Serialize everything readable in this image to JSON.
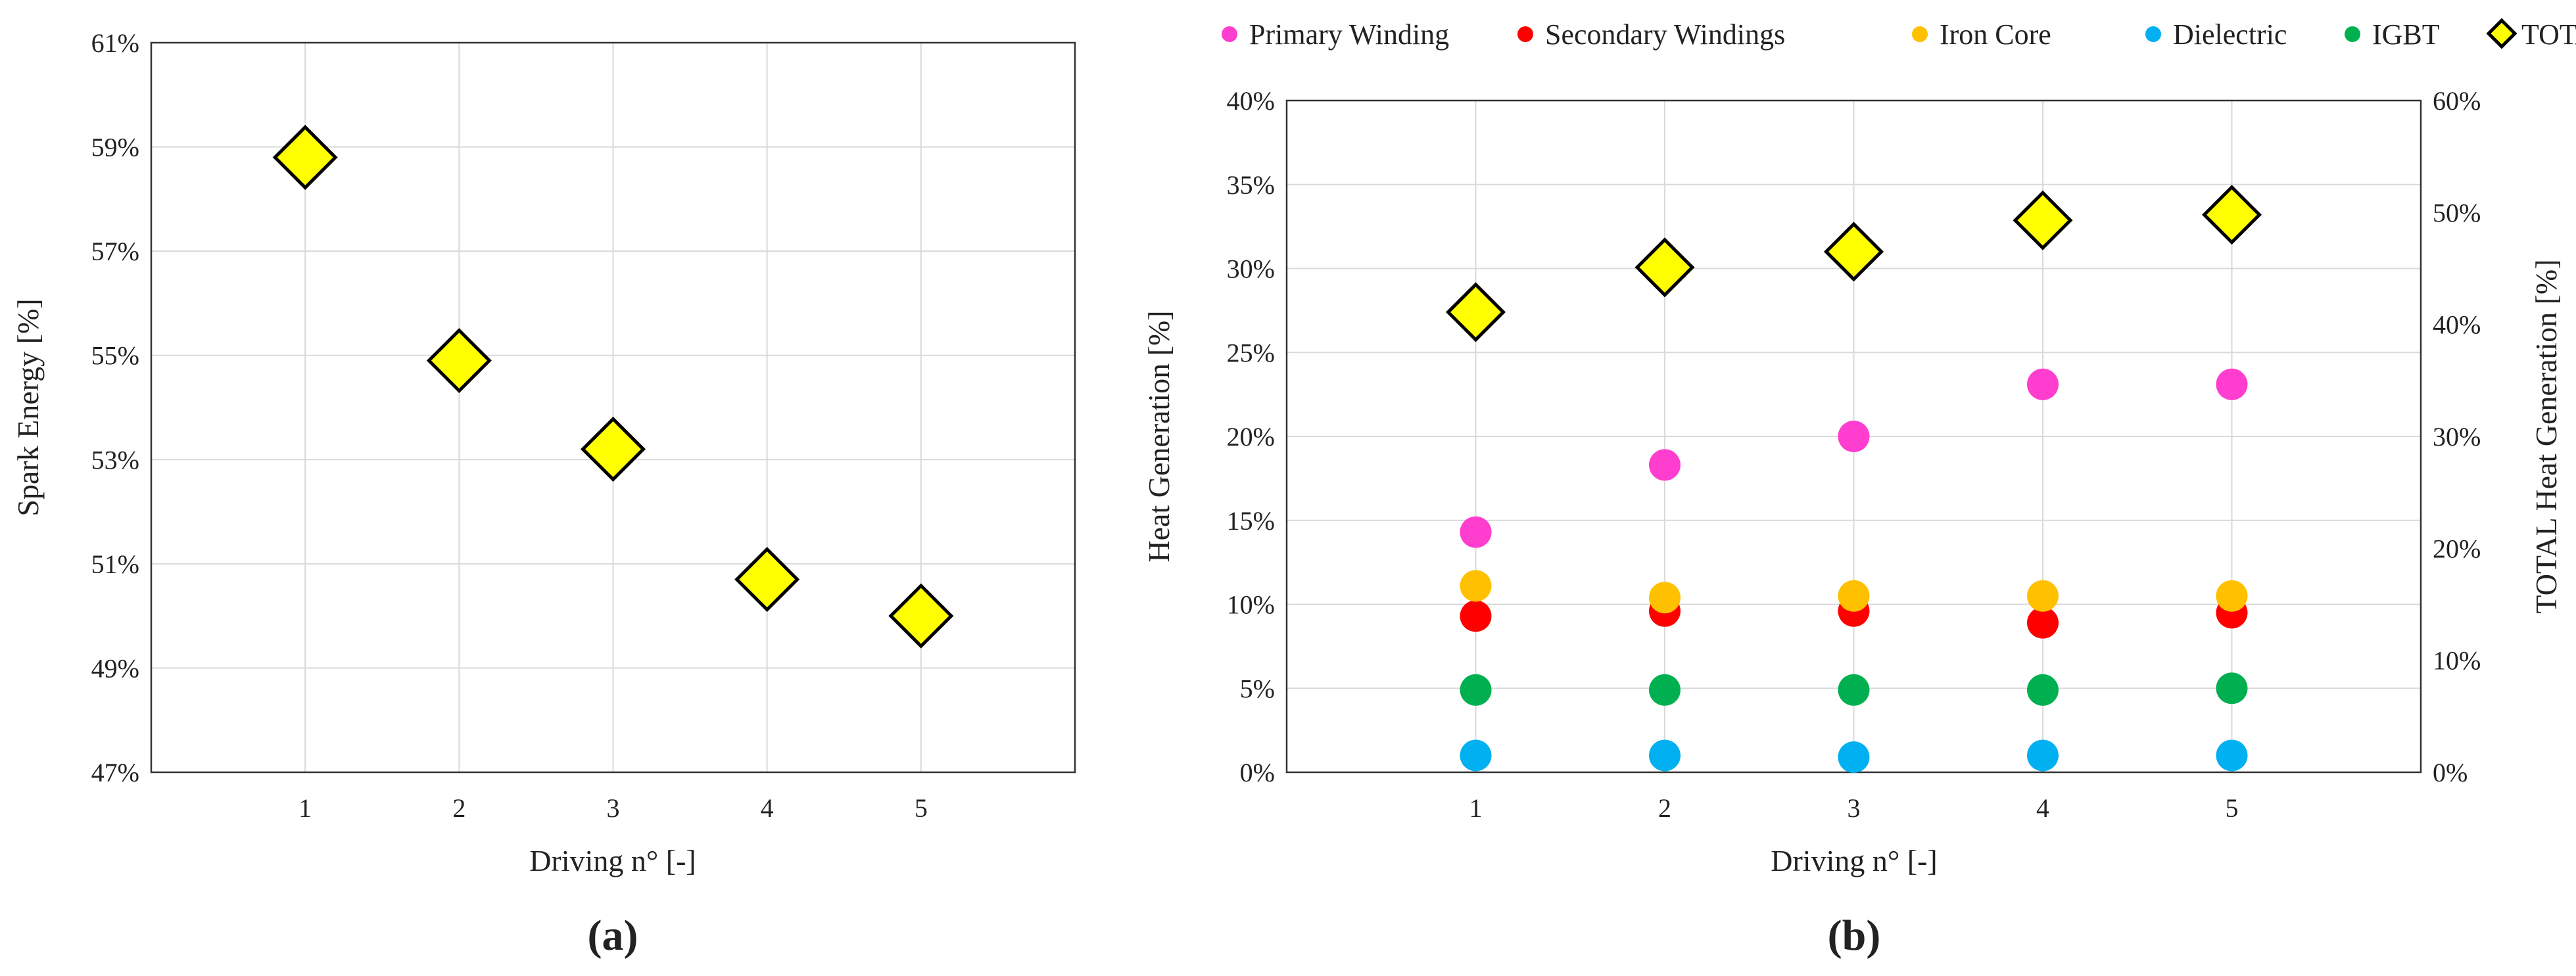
{
  "chart_data": [
    {
      "type": "scatter",
      "panel_label": "(a)",
      "x": [
        1,
        2,
        3,
        4,
        5
      ],
      "xlim": [
        0,
        6
      ],
      "xticks": [
        "1",
        "2",
        "3",
        "4",
        "5"
      ],
      "xlabel": "Driving n°  [-]",
      "ylabel": "Spark Energy [%]",
      "ylim": [
        47,
        61
      ],
      "yticks": [
        "47%",
        "49%",
        "51%",
        "53%",
        "55%",
        "57%",
        "59%",
        "61%"
      ],
      "grid": true,
      "series": [
        {
          "values": [
            58.8,
            54.9,
            53.2,
            50.7,
            50.0
          ],
          "color": "#ffff00",
          "marker": "diamond"
        }
      ]
    },
    {
      "type": "scatter",
      "panel_label": "(b)",
      "x": [
        1,
        2,
        3,
        4,
        5
      ],
      "xlim": [
        0,
        6
      ],
      "xticks": [
        "1",
        "2",
        "3",
        "4",
        "5"
      ],
      "xlabel": "Driving n°  [-]",
      "ylabel": "Heat Generation  [%]",
      "ylim": [
        0,
        40
      ],
      "yticks": [
        "0%",
        "5%",
        "10%",
        "15%",
        "20%",
        "25%",
        "30%",
        "35%",
        "40%"
      ],
      "y2label": "TOTAL Heat Generation  [%]",
      "y2lim": [
        0,
        60
      ],
      "y2ticks": [
        "0%",
        "10%",
        "20%",
        "30%",
        "40%",
        "50%",
        "60%"
      ],
      "legend_position": "top",
      "grid": true,
      "series": [
        {
          "name": "Primary Winding",
          "values": [
            14.3,
            18.3,
            20.0,
            23.1,
            23.1
          ],
          "color": "#ff3dcf",
          "marker": "circle",
          "axis": "left"
        },
        {
          "name": "Secondary Windings",
          "values": [
            9.3,
            9.6,
            9.6,
            8.9,
            9.5
          ],
          "color": "#ff0000",
          "marker": "circle",
          "axis": "left"
        },
        {
          "name": "Iron Core",
          "values": [
            11.1,
            10.4,
            10.5,
            10.5,
            10.5
          ],
          "color": "#ffc000",
          "marker": "circle",
          "axis": "left"
        },
        {
          "name": "Dielectric",
          "values": [
            1.0,
            1.0,
            0.9,
            1.0,
            1.0
          ],
          "color": "#00b0f0",
          "marker": "circle",
          "axis": "left"
        },
        {
          "name": "IGBT",
          "values": [
            4.9,
            4.9,
            4.9,
            4.9,
            5.0
          ],
          "color": "#00b050",
          "marker": "circle",
          "axis": "left"
        },
        {
          "name": "TOTAL",
          "values": [
            41.1,
            45.1,
            46.5,
            49.3,
            49.8
          ],
          "color": "#ffff00",
          "marker": "diamond",
          "axis": "right"
        }
      ]
    }
  ]
}
